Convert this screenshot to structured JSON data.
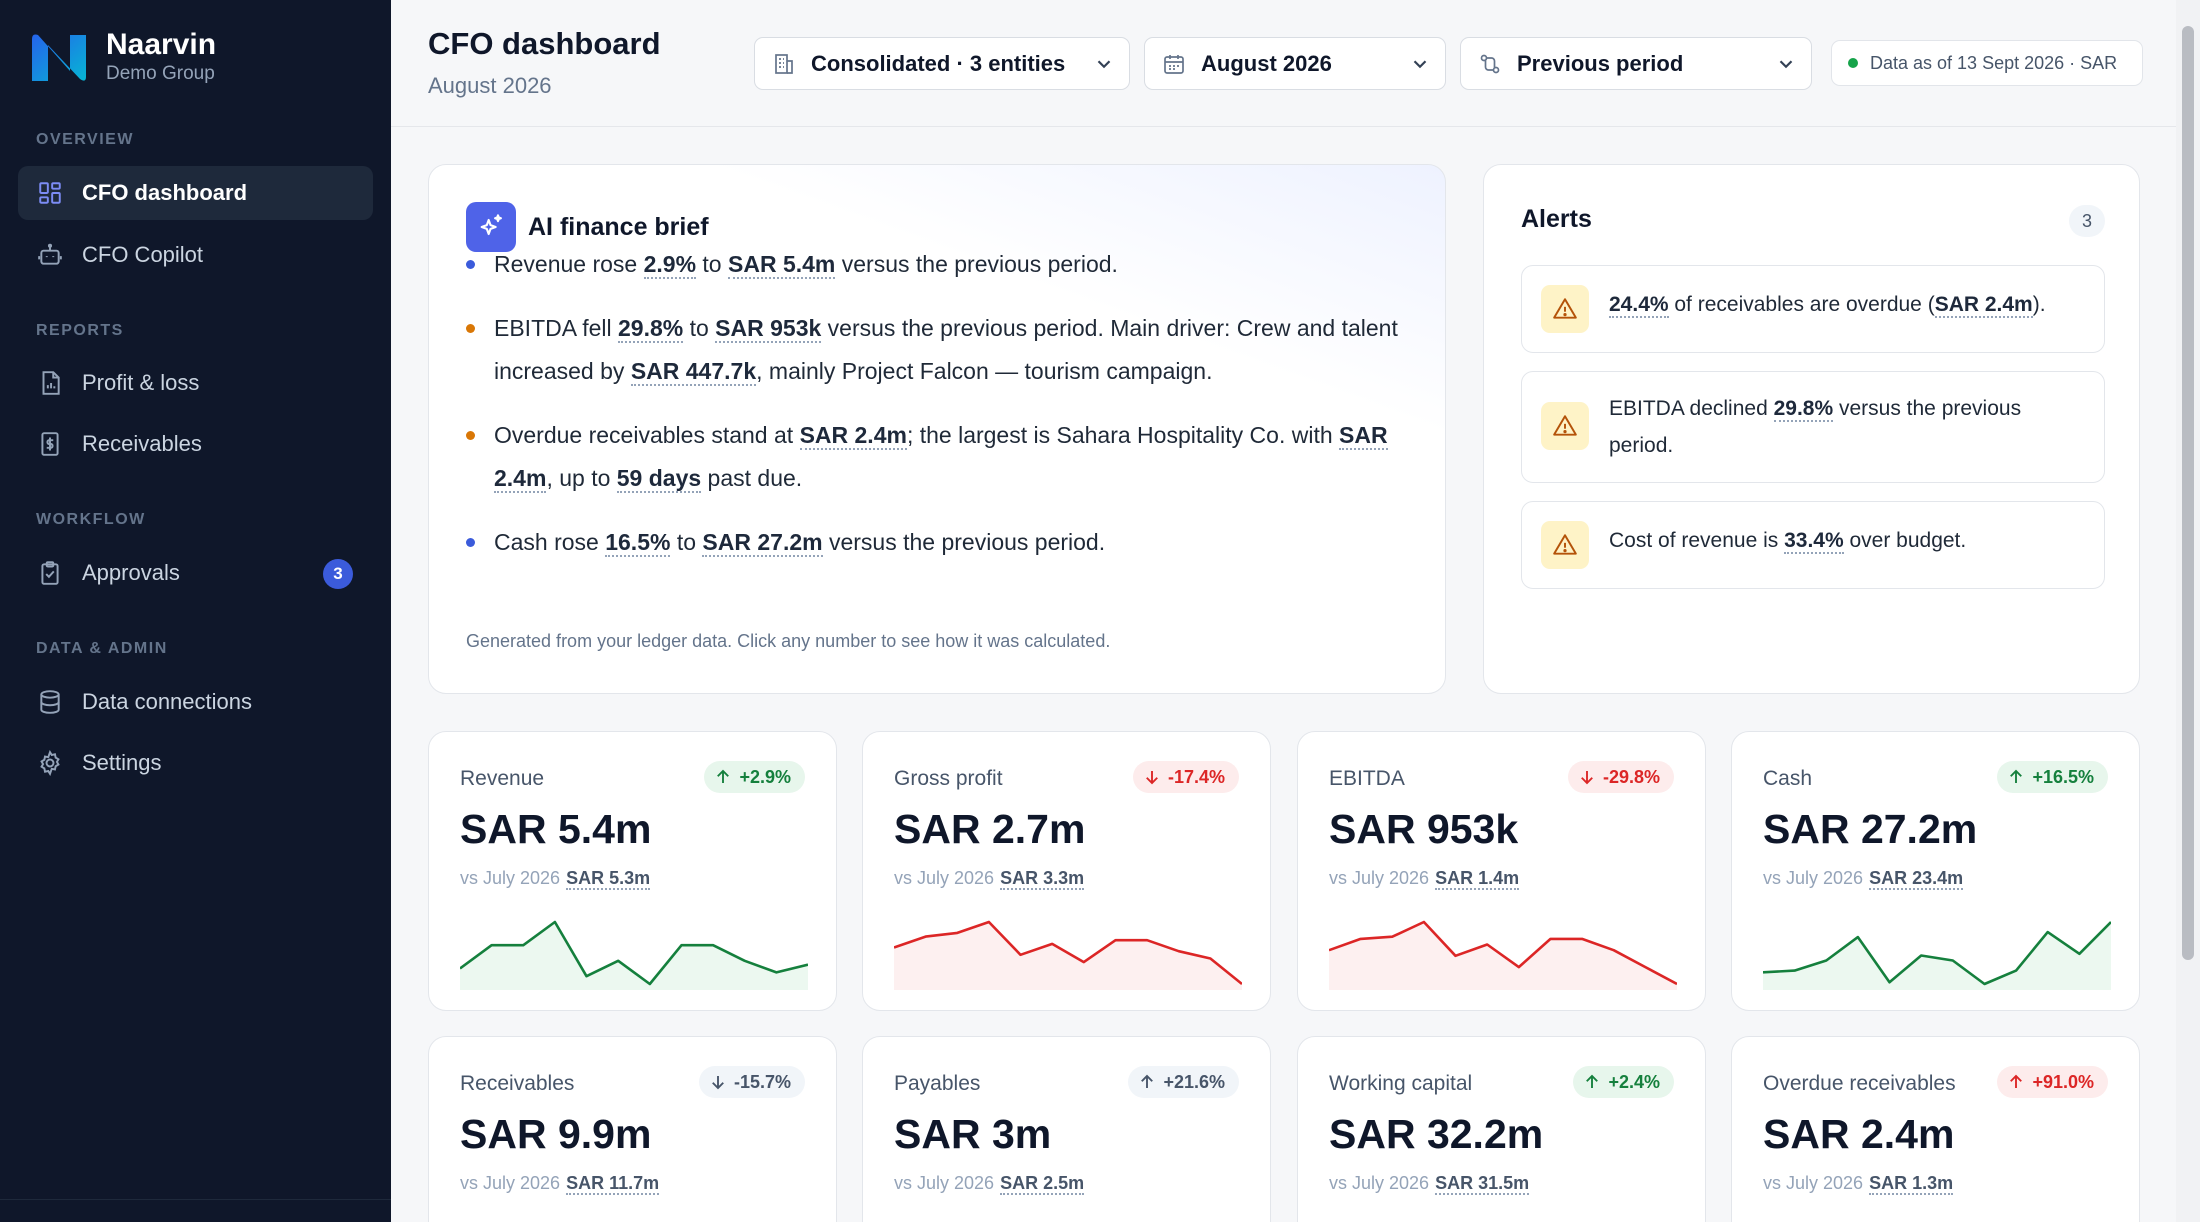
{
  "brand": {
    "name": "Naarvin",
    "sub": "Demo Group"
  },
  "nav": {
    "sections": {
      "overview": "OVERVIEW",
      "reports": "REPORTS",
      "workflow": "WORKFLOW",
      "admin": "DATA & ADMIN"
    },
    "items": {
      "cfo_dashboard": "CFO dashboard",
      "cfo_copilot": "CFO Copilot",
      "profit_loss": "Profit & loss",
      "receivables": "Receivables",
      "approvals": "Approvals",
      "approvals_badge": "3",
      "data_connections": "Data connections",
      "settings": "Settings"
    }
  },
  "header": {
    "title": "CFO dashboard",
    "subtitle": "August 2026",
    "entity_select": "Consolidated · 3 entities",
    "period_select": "August 2026",
    "compare_select": "Previous period",
    "data_as_of": "Data as of 13 Sept 2026 · SAR"
  },
  "brief": {
    "title": "AI finance brief",
    "b1": {
      "t1": "Revenue rose ",
      "n1": "2.9%",
      "t2": " to ",
      "n2": "SAR 5.4m",
      "t3": " versus the previous period."
    },
    "b2": {
      "t1": "EBITDA fell ",
      "n1": "29.8%",
      "t2": " to ",
      "n2": "SAR 953k",
      "t3": " versus the previous period. Main driver: Crew and talent increased by ",
      "n3": "SAR 447.7k",
      "t4": ", mainly Project Falcon — tourism campaign."
    },
    "b3": {
      "t1": "Overdue receivables stand at ",
      "n1": "SAR 2.4m",
      "t2": "; the largest is Sahara Hospitality Co. with ",
      "n2": "SAR 2.4m",
      "t3": ", up to ",
      "n3": "59 days",
      "t4": " past due."
    },
    "b4": {
      "t1": "Cash rose ",
      "n1": "16.5%",
      "t2": " to ",
      "n2": "SAR 27.2m",
      "t3": " versus the previous period."
    },
    "footer": "Generated from your ledger data. Click any number to see how it was calculated."
  },
  "alerts": {
    "title": "Alerts",
    "count": "3",
    "a1": {
      "n1": "24.4%",
      "t1": " of receivables are overdue (",
      "n2": "SAR 2.4m",
      "t2": ")."
    },
    "a2": {
      "t1": "EBITDA declined ",
      "n1": "29.8%",
      "t2": " versus the previous period."
    },
    "a3": {
      "t1": "Cost of revenue is ",
      "n1": "33.4%",
      "t2": " over budget."
    }
  },
  "colors": {
    "up": "#15803d",
    "down": "#dc2626",
    "accent": "#3b5bdb"
  },
  "kpis": [
    {
      "label": "Revenue",
      "change": "+2.9%",
      "dir": "up",
      "value": "SAR 5.4m",
      "vs": "vs July 2026",
      "prev": "SAR 5.3m",
      "trend": [
        5.0,
        5.3,
        5.3,
        5.6,
        4.9,
        5.1,
        4.8,
        5.3,
        5.3,
        5.1,
        4.95,
        5.05
      ]
    },
    {
      "label": "Gross profit",
      "change": "-17.4%",
      "dir": "down",
      "value": "SAR 2.7m",
      "vs": "vs July 2026",
      "prev": "SAR 3.3m",
      "trend": [
        3.0,
        3.15,
        3.2,
        3.35,
        2.9,
        3.05,
        2.8,
        3.1,
        3.1,
        2.95,
        2.85,
        2.5
      ]
    },
    {
      "label": "EBITDA",
      "change": "-29.8%",
      "dir": "down",
      "value": "SAR 953k",
      "vs": "vs July 2026",
      "prev": "SAR 1.4m",
      "trend": [
        1.2,
        1.3,
        1.32,
        1.45,
        1.15,
        1.25,
        1.05,
        1.3,
        1.3,
        1.2,
        1.05,
        0.9
      ]
    },
    {
      "label": "Cash",
      "change": "+16.5%",
      "dir": "up",
      "value": "SAR 27.2m",
      "vs": "vs July 2026",
      "prev": "SAR 23.4m",
      "trend": [
        23.5,
        23.6,
        24.2,
        25.6,
        22.9,
        24.5,
        24.2,
        22.8,
        23.6,
        25.9,
        24.6,
        26.5
      ]
    },
    {
      "label": "Receivables",
      "change": "-15.7%",
      "dir": "neutral-down",
      "value": "SAR 9.9m",
      "vs": "vs July 2026",
      "prev": "SAR 11.7m"
    },
    {
      "label": "Payables",
      "change": "+21.6%",
      "dir": "neutral-up",
      "value": "SAR 3m",
      "vs": "vs July 2026",
      "prev": "SAR 2.5m"
    },
    {
      "label": "Working capital",
      "change": "+2.4%",
      "dir": "up",
      "value": "SAR 32.2m",
      "vs": "vs July 2026",
      "prev": "SAR 31.5m"
    },
    {
      "label": "Overdue receivables",
      "change": "+91.0%",
      "dir": "down-up",
      "value": "SAR 2.4m",
      "vs": "vs July 2026",
      "prev": "SAR 1.3m"
    }
  ]
}
